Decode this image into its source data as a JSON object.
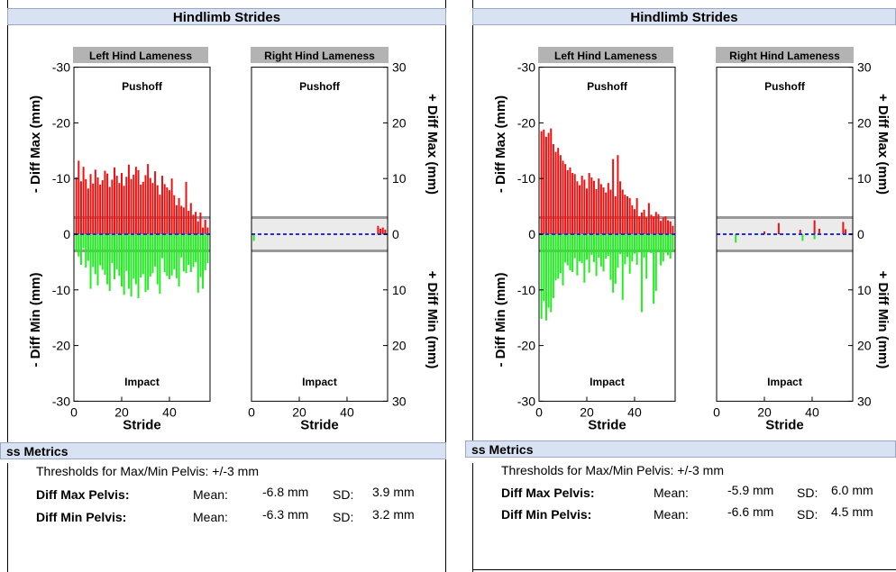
{
  "panels": [
    {
      "section_title": "Hindlimb Strides",
      "left_chart": {
        "title": "Left Hind Lameness",
        "top_label": "Pushoff",
        "bottom_label": "Impact"
      },
      "right_chart": {
        "title": "Right Hind Lameness",
        "top_label": "Pushoff",
        "bottom_label": "Impact"
      },
      "y_axis_left_top": "- Diff Max (mm)",
      "y_axis_left_bottom": "- Diff Min (mm)",
      "y_axis_right_top": "+ Diff Max (mm)",
      "y_axis_right_bottom": "+ Diff Min (mm)",
      "x_axis_label": "Stride",
      "metrics": {
        "title": "ss Metrics",
        "thresholds": "Thresholds for Max/Min Pelvis: +/-3 mm",
        "rows": [
          {
            "label": "Diff Max Pelvis:",
            "mean_label": "Mean:",
            "mean": "-6.8 mm",
            "sd_label": "SD:",
            "sd": "3.9 mm"
          },
          {
            "label": "Diff Min Pelvis:",
            "mean_label": "Mean:",
            "mean": "-6.3 mm",
            "sd_label": "SD:",
            "sd": "3.2 mm"
          }
        ]
      }
    },
    {
      "section_title": "Hindlimb Strides",
      "left_chart": {
        "title": "Left Hind Lameness",
        "top_label": "Pushoff",
        "bottom_label": "Impact"
      },
      "right_chart": {
        "title": "Right Hind Lameness",
        "top_label": "Pushoff",
        "bottom_label": "Impact"
      },
      "y_axis_left_top": "- Diff Max (mm)",
      "y_axis_left_bottom": "- Diff Min (mm)",
      "y_axis_right_top": "+ Diff Max (mm)",
      "y_axis_right_bottom": "+ Diff Min (mm)",
      "x_axis_label": "Stride",
      "metrics": {
        "title": "ss Metrics",
        "thresholds": "Thresholds for Max/Min Pelvis: +/-3 mm",
        "rows": [
          {
            "label": "Diff Max Pelvis:",
            "mean_label": "Mean:",
            "mean": "-5.9 mm",
            "sd_label": "SD:",
            "sd": "6.0 mm"
          },
          {
            "label": "Diff Min Pelvis:",
            "mean_label": "Mean:",
            "mean": "-6.6 mm",
            "sd_label": "SD:",
            "sd": "4.5 mm"
          }
        ]
      }
    }
  ],
  "chart_data": [
    {
      "type": "bar",
      "title": "Left Hind Lameness",
      "xlabel": "Stride",
      "ylabel": "- Diff Max (mm) / - Diff Min (mm)",
      "xlim": [
        0,
        57
      ],
      "ylim": [
        -30,
        30
      ],
      "xticks": [
        0,
        20,
        40
      ],
      "yticks": [
        -30,
        -20,
        -10,
        0,
        -10,
        -20,
        -30
      ],
      "threshold_band": [
        -3,
        3
      ],
      "series": [
        {
          "name": "Pushoff",
          "color": "#ee1111",
          "values": [
            10.2,
            13.2,
            9.5,
            12.1,
            9.9,
            8.2,
            10.8,
            9.1,
            11.6,
            10.2,
            8.9,
            9.7,
            11.4,
            10.9,
            8.5,
            9.8,
            12.0,
            10.5,
            9.2,
            11.0,
            8.7,
            10.3,
            12.5,
            9.9,
            10.7,
            12.1,
            11.5,
            8.9,
            9.4,
            10.6,
            12.6,
            10.1,
            9.2,
            11.3,
            8.8,
            7.1,
            10.5,
            9.0,
            8.4,
            7.9,
            10.0,
            7.0,
            5.2,
            6.5,
            5.1,
            4.8,
            9.4,
            4.2,
            5.6,
            3.5,
            4.0,
            2.3,
            3.9,
            1.2,
            2.6,
            1.2
          ]
        },
        {
          "name": "Impact",
          "color": "#22ee22",
          "values": [
            -3.1,
            -4.0,
            -5.5,
            -2.5,
            -6.0,
            -4.8,
            -9.8,
            -5.9,
            -7.2,
            -9.2,
            -5.6,
            -6.4,
            -7.3,
            -9.0,
            -10.2,
            -5.2,
            -8.1,
            -6.3,
            -7.5,
            -9.4,
            -10.9,
            -6.6,
            -9.8,
            -11.2,
            -8.0,
            -9.0,
            -11.5,
            -7.8,
            -7.2,
            -10.4,
            -10.0,
            -7.6,
            -7.0,
            -5.8,
            -9.0,
            -10.7,
            -4.3,
            -6.8,
            -7.5,
            -8.1,
            -7.4,
            -6.3,
            -7.9,
            -9.4,
            -4.2,
            -6.7,
            -7.0,
            -5.5,
            -6.8,
            -5.9,
            -5.0,
            -10.5,
            -7.7,
            -9.8,
            -6.5,
            -5.2
          ]
        }
      ]
    },
    {
      "type": "bar",
      "title": "Right Hind Lameness",
      "xlabel": "Stride",
      "ylabel": "+ Diff Max (mm) / + Diff Min (mm)",
      "xlim": [
        0,
        57
      ],
      "ylim": [
        -30,
        30
      ],
      "xticks": [
        0,
        20,
        40
      ],
      "yticks": [
        30,
        20,
        10,
        0,
        10,
        20,
        30
      ],
      "threshold_band": [
        -3,
        3
      ],
      "series": [
        {
          "name": "Pushoff",
          "color": "#ee1111",
          "x": [
            53,
            54,
            55,
            56
          ],
          "values": [
            1.5,
            1.0,
            1.2,
            0.8
          ]
        },
        {
          "name": "Impact",
          "color": "#22ee22",
          "x": [
            1
          ],
          "values": [
            -1.2
          ]
        }
      ]
    },
    {
      "type": "bar",
      "title": "Left Hind Lameness",
      "xlabel": "Stride",
      "ylabel": "- Diff Max (mm) / - Diff Min (mm)",
      "xlim": [
        0,
        57
      ],
      "ylim": [
        -30,
        30
      ],
      "xticks": [
        0,
        20,
        40
      ],
      "yticks": [
        -30,
        -20,
        -10,
        0,
        -10,
        -20,
        -30
      ],
      "threshold_band": [
        -3,
        3
      ],
      "series": [
        {
          "name": "Pushoff",
          "color": "#ee1111",
          "values": [
            18.5,
            18.8,
            17.5,
            18.2,
            19.0,
            16.2,
            14.8,
            15.5,
            14.2,
            13.2,
            12.6,
            11.5,
            12.0,
            11.0,
            10.8,
            9.5,
            8.8,
            10.5,
            9.8,
            8.2,
            11.0,
            10.2,
            9.6,
            8.1,
            10.0,
            9.0,
            8.4,
            7.5,
            9.2,
            8.0,
            13.5,
            6.8,
            14.2,
            9.5,
            8.0,
            7.1,
            6.8,
            6.5,
            5.2,
            4.5,
            6.5,
            3.2,
            3.9,
            4.4,
            3.0,
            5.6,
            3.5,
            3.2,
            4.0,
            3.6,
            2.4,
            3.0,
            3.2,
            2.5,
            2.3,
            1.5
          ]
        },
        {
          "name": "Impact",
          "color": "#22ee22",
          "values": [
            -15.2,
            -12.0,
            -15.5,
            -13.2,
            -14.0,
            -11.5,
            -8.3,
            -8.0,
            -7.0,
            -9.2,
            -5.1,
            -5.6,
            -6.5,
            -6.8,
            -4.3,
            -7.4,
            -4.9,
            -5.2,
            -8.7,
            -4.6,
            -6.9,
            -3.7,
            -5.0,
            -7.5,
            -4.2,
            -5.8,
            -6.7,
            -4.4,
            -3.9,
            -8.2,
            -10.5,
            -8.9,
            -6.0,
            -3.6,
            -11.8,
            -5.4,
            -4.1,
            -7.1,
            -4.9,
            -3.5,
            -5.5,
            -3.2,
            -14.0,
            -4.2,
            -8.0,
            -3.2,
            -3.4,
            -12.5,
            -10.2,
            -3.2,
            -5.6,
            -4.9,
            -3.3,
            -3.8,
            -4.4,
            -3.2
          ]
        }
      ]
    },
    {
      "type": "bar",
      "title": "Right Hind Lameness",
      "xlabel": "Stride",
      "ylabel": "+ Diff Max (mm) / + Diff Min (mm)",
      "xlim": [
        0,
        57
      ],
      "ylim": [
        -30,
        30
      ],
      "xticks": [
        0,
        20,
        40
      ],
      "yticks": [
        30,
        20,
        10,
        0,
        10,
        20,
        30
      ],
      "threshold_band": [
        -3,
        3
      ],
      "series": [
        {
          "name": "Pushoff",
          "color": "#ee1111",
          "x": [
            20,
            26,
            35,
            41,
            43,
            53,
            54
          ],
          "values": [
            0.5,
            2.0,
            0.8,
            2.5,
            1.0,
            2.2,
            0.9
          ]
        },
        {
          "name": "Impact",
          "color": "#22ee22",
          "x": [
            8,
            36,
            41
          ],
          "values": [
            -1.5,
            -1.2,
            -0.9
          ]
        }
      ]
    }
  ]
}
